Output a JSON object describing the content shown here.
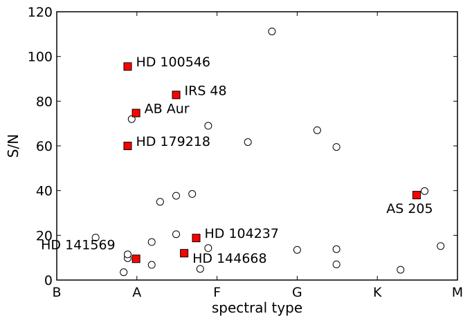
{
  "chart_data": {
    "type": "scatter",
    "xlabel": "spectral type",
    "ylabel": "S/N",
    "xlim": [
      0,
      10
    ],
    "ylim": [
      0,
      120
    ],
    "x_ticks": [
      {
        "pos": 0,
        "label": "B"
      },
      {
        "pos": 2,
        "label": "A"
      },
      {
        "pos": 4,
        "label": "F"
      },
      {
        "pos": 6,
        "label": "G"
      },
      {
        "pos": 8,
        "label": "K"
      },
      {
        "pos": 10,
        "label": "M"
      }
    ],
    "y_ticks": [
      0,
      20,
      40,
      60,
      80,
      100,
      120
    ],
    "series": [
      {
        "marker": "open-circle",
        "color": "#ffffff",
        "points": [
          {
            "x": 0.97,
            "y": 19.0
          },
          {
            "x": 1.67,
            "y": 3.5
          },
          {
            "x": 1.77,
            "y": 9.8
          },
          {
            "x": 1.77,
            "y": 11.5
          },
          {
            "x": 1.87,
            "y": 72.0
          },
          {
            "x": 2.37,
            "y": 17.0
          },
          {
            "x": 2.37,
            "y": 6.8
          },
          {
            "x": 2.58,
            "y": 35.0
          },
          {
            "x": 2.98,
            "y": 37.7
          },
          {
            "x": 2.98,
            "y": 20.5
          },
          {
            "x": 3.38,
            "y": 38.5
          },
          {
            "x": 3.58,
            "y": 5.0
          },
          {
            "x": 3.78,
            "y": 69.0
          },
          {
            "x": 3.78,
            "y": 14.3
          },
          {
            "x": 4.77,
            "y": 61.7
          },
          {
            "x": 5.37,
            "y": 111.2
          },
          {
            "x": 6.0,
            "y": 13.5
          },
          {
            "x": 6.5,
            "y": 67.0
          },
          {
            "x": 6.98,
            "y": 59.5
          },
          {
            "x": 6.98,
            "y": 13.8
          },
          {
            "x": 6.98,
            "y": 7.0
          },
          {
            "x": 8.58,
            "y": 4.6
          },
          {
            "x": 9.18,
            "y": 39.8
          },
          {
            "x": 9.58,
            "y": 15.2
          }
        ]
      },
      {
        "marker": "filled-square",
        "color": "#ff0000",
        "points": [
          {
            "x": 1.77,
            "y": 95.5,
            "label": "HD 100546",
            "anchor": "right"
          },
          {
            "x": 2.98,
            "y": 82.8,
            "label": "IRS 48",
            "anchor": "right"
          },
          {
            "x": 1.98,
            "y": 74.7,
            "label": "AB Aur",
            "anchor": "right"
          },
          {
            "x": 1.77,
            "y": 60.0,
            "label": "HD 179218",
            "anchor": "right"
          },
          {
            "x": 3.48,
            "y": 18.8,
            "label": "HD 104237",
            "anchor": "right"
          },
          {
            "x": 1.98,
            "y": 9.5,
            "label": "HD 141569",
            "anchor": "left-above"
          },
          {
            "x": 3.18,
            "y": 12.0,
            "label": "HD 144668",
            "anchor": "right-below"
          },
          {
            "x": 8.98,
            "y": 38.0,
            "label": "AS 205",
            "anchor": "below"
          }
        ]
      }
    ]
  }
}
